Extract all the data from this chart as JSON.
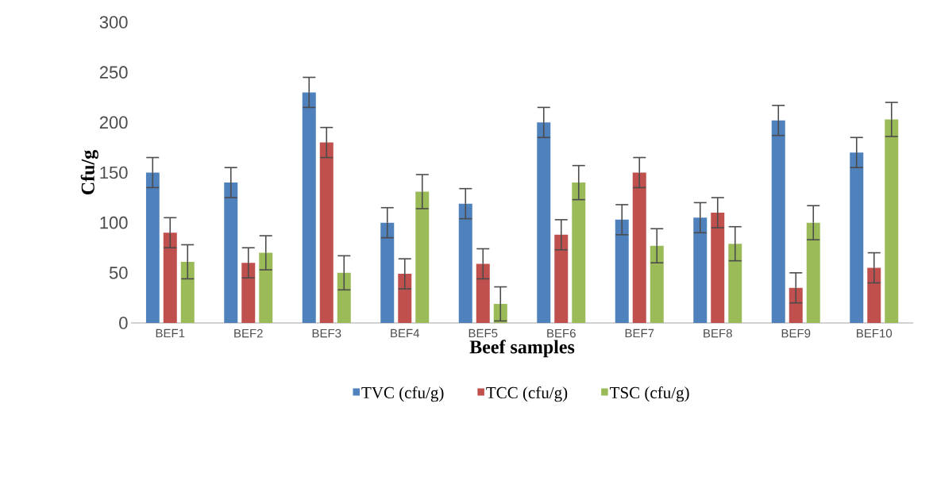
{
  "chart_data": {
    "type": "bar",
    "xlabel": "Beef samples",
    "ylabel": "Cfu/g",
    "categories": [
      "BEF1",
      "BEF2",
      "BEF3",
      "BEF4",
      "BEF5",
      "BEF6",
      "BEF7",
      "BEF8",
      "BEF9",
      "BEF10"
    ],
    "series": [
      {
        "name": "TVC (cfu/g)",
        "color": "#4f81bd",
        "values": [
          150,
          140,
          230,
          100,
          119,
          200,
          103,
          105,
          202,
          170
        ],
        "errors": [
          15,
          15,
          15,
          15,
          15,
          15,
          15,
          15,
          15,
          15
        ]
      },
      {
        "name": "TCC (cfu/g)",
        "color": "#c0504d",
        "values": [
          90,
          60,
          180,
          49,
          59,
          88,
          150,
          110,
          35,
          55
        ],
        "errors": [
          15,
          15,
          15,
          15,
          15,
          15,
          15,
          15,
          15,
          15
        ]
      },
      {
        "name": "TSC (cfu/g)",
        "color": "#9bbb59",
        "values": [
          61,
          70,
          50,
          131,
          19,
          140,
          77,
          79,
          100,
          203
        ],
        "errors": [
          17,
          17,
          17,
          17,
          17,
          17,
          17,
          17,
          17,
          17
        ]
      }
    ],
    "ylim": [
      0,
      300
    ],
    "yticks": [
      0,
      50,
      100,
      150,
      200,
      250,
      300
    ],
    "legend": "bottom",
    "grid": false
  }
}
